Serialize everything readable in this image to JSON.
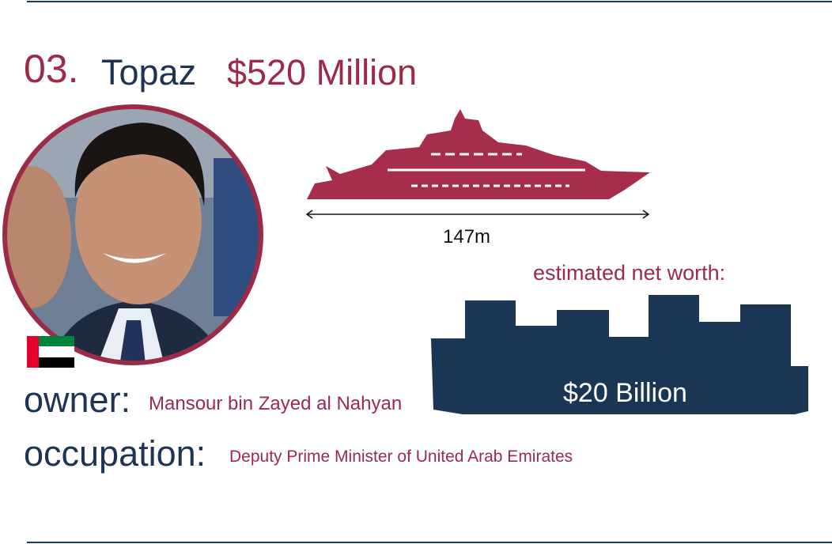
{
  "header": {
    "number": "03.",
    "name": "Topaz",
    "price": "$520 Million"
  },
  "yacht": {
    "length": "147m"
  },
  "net_worth": {
    "label": "estimated net worth:",
    "value": "$20 Billion"
  },
  "owner": {
    "label": "owner:",
    "name": "Mansour bin Zayed al Nahyan"
  },
  "occupation": {
    "label": "occupation:",
    "text": "Deputy Prime Minister of United Arab Emirates"
  }
}
